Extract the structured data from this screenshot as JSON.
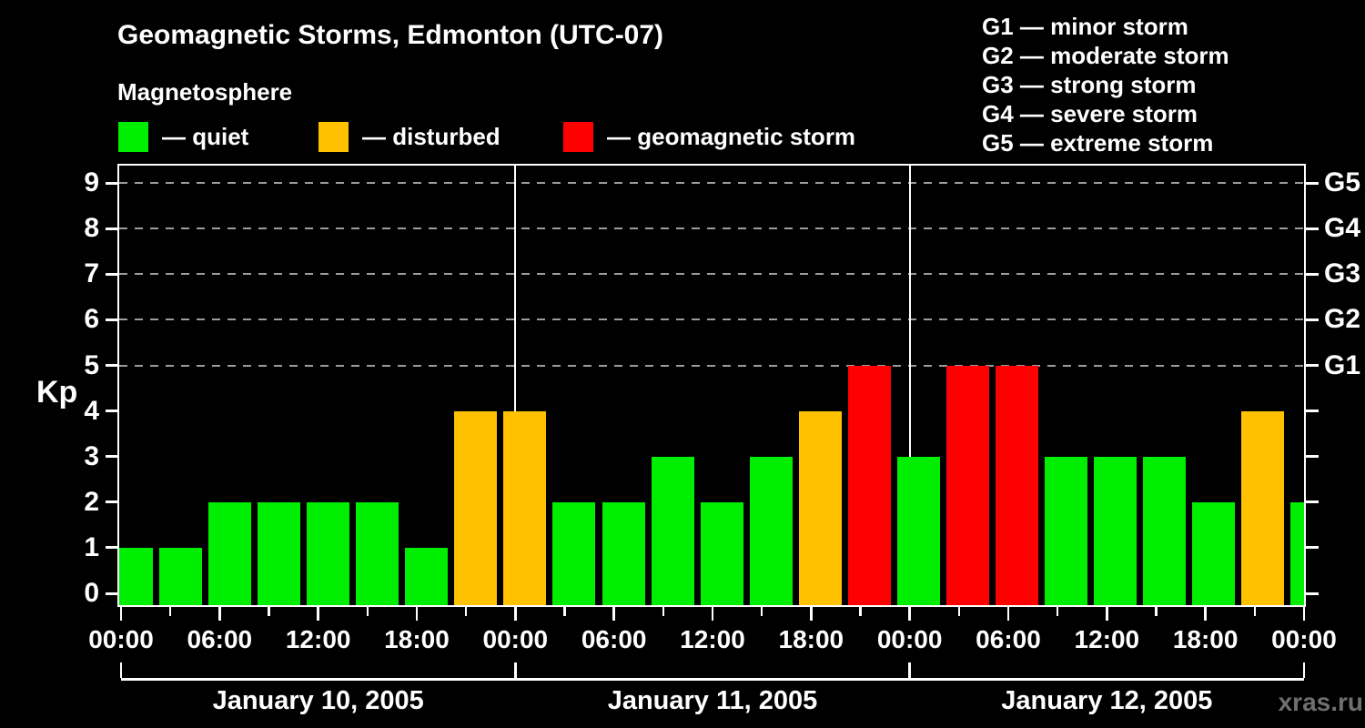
{
  "page": {
    "title": "Geomagnetic Storms, Edmonton (UTC-07)",
    "subtitle": "Magnetosphere",
    "watermark": "xras.ru"
  },
  "legend": {
    "items": [
      {
        "name": "quiet",
        "label": "— quiet",
        "color": "#00ee00"
      },
      {
        "name": "disturbed",
        "label": "— disturbed",
        "color": "#ffc100"
      },
      {
        "name": "storm",
        "label": "— geomagnetic storm",
        "color": "#ff0000"
      }
    ]
  },
  "storm_scale": {
    "items": [
      "G1 — minor storm",
      "G2 — moderate storm",
      "G3 — strong storm",
      "G4 — severe storm",
      "G5 — extreme storm"
    ]
  },
  "chart_data": {
    "type": "bar",
    "title": "Geomagnetic Storms, Edmonton (UTC-07)",
    "subtitle": "Magnetosphere",
    "ylabel": "Kp",
    "ylim": [
      -0.4,
      9.4
    ],
    "y_ticks": [
      0,
      1,
      2,
      3,
      4,
      5,
      6,
      7,
      8,
      9
    ],
    "right_axis_labels": [
      {
        "kp": 5,
        "label": "G1"
      },
      {
        "kp": 6,
        "label": "G2"
      },
      {
        "kp": 7,
        "label": "G3"
      },
      {
        "kp": 8,
        "label": "G4"
      },
      {
        "kp": 9,
        "label": "G5"
      }
    ],
    "gridlines_kp": [
      5,
      6,
      7,
      8,
      9
    ],
    "grid_color": "#9c9c9c",
    "interval_hours": 3,
    "bars_per_day": 8,
    "x_major_tick_labels": [
      "00:00",
      "06:00",
      "12:00",
      "18:00"
    ],
    "x_final_tick_label": "00:00",
    "days": [
      {
        "date": "January 10, 2005",
        "kp": [
          1,
          1,
          2,
          2,
          2,
          2,
          1,
          4
        ]
      },
      {
        "date": "January 11, 2005",
        "kp": [
          4,
          2,
          2,
          3,
          2,
          3,
          4,
          5
        ]
      },
      {
        "date": "January 12, 2005",
        "kp": [
          3,
          5,
          5,
          3,
          3,
          3,
          2,
          4
        ]
      }
    ],
    "trailing_partial_kp": 2,
    "colors": {
      "quiet": "#00ee00",
      "disturbed": "#ffc100",
      "storm": "#ff0000"
    },
    "color_rule": {
      "disturbed_min": 4,
      "storm_min": 5
    },
    "legend_position": "top"
  }
}
